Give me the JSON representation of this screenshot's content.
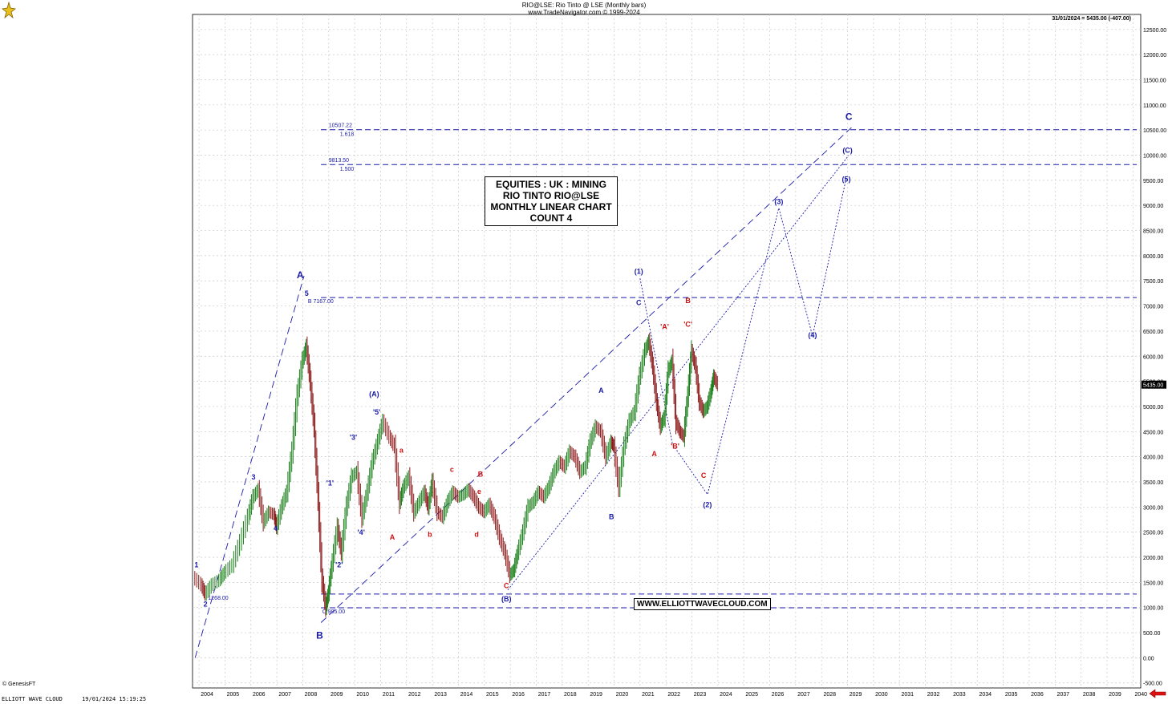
{
  "header": {
    "title": "RIO@LSE:  Rio Tinto @ LSE  (Monthly bars)",
    "subtitle": "www.TradeNavigator.com © 1999-2024",
    "last_info": "31/01/2024 = 5435.00 (-407.00)"
  },
  "title_box": {
    "line1": "EQUITIES : UK : MINING",
    "line2": "RIO TINTO RIO@LSE",
    "line3": "MONTHLY LINEAR CHART",
    "line4": "COUNT 4"
  },
  "website": "WWW.ELLIOTTWAVECLOUD.COM",
  "copyright": "© GenesisFT",
  "footer": {
    "brand": "ELLIOTT WAVE CLOUD",
    "date": "19/01/2024 15:19:25"
  },
  "colors": {
    "price_up": "#1a7f1a",
    "price_down": "#8b1a1a",
    "wave_blue": "#1a1aa8",
    "wave_red": "#cc1111",
    "grid": "#c8c8c8",
    "last_price_bg": "#000000"
  },
  "chart_data": {
    "type": "line",
    "title": "RIO@LSE:  Rio Tinto @ LSE  (Monthly bars)",
    "x_ticks": [
      "2004",
      "2005",
      "2006",
      "2007",
      "2008",
      "2009",
      "2010",
      "2011",
      "2012",
      "2013",
      "2014",
      "2015",
      "2016",
      "2017",
      "2018",
      "2019",
      "2020",
      "2021",
      "2022",
      "2023",
      "2024",
      "2025",
      "2026",
      "2027",
      "2028",
      "2029",
      "2030",
      "2031",
      "2032",
      "2033",
      "2034",
      "2035",
      "2036",
      "2037",
      "2038",
      "2039",
      "2040"
    ],
    "y_ticks": [
      -500,
      0,
      500,
      1000,
      1500,
      2000,
      2500,
      3000,
      3500,
      4000,
      4500,
      5000,
      5500,
      6000,
      6500,
      7000,
      7500,
      8000,
      8500,
      9000,
      9500,
      10000,
      10500,
      11000,
      11500,
      12000,
      12500
    ],
    "y_tick_labels": [
      "-500.00",
      "0.00",
      "500.00",
      "1000.00",
      "1500.00",
      "2000.00",
      "2500.00",
      "3000.00",
      "3500.00",
      "4000.00",
      "4500.00",
      "5000.00",
      "5500.00",
      "6000.00",
      "6500.00",
      "7000.00",
      "7500.00",
      "8000.00",
      "8500.00",
      "9000.00",
      "9500.00",
      "10000.00",
      "10500.00",
      "11000.00",
      "11500.00",
      "12000.00",
      "12500.00"
    ],
    "ylim": [
      -600,
      12800
    ],
    "xlim": [
      2003.75,
      2040.3
    ],
    "grid": true,
    "last_price_label": "5435.00",
    "last_price": 5435,
    "price_series": [
      [
        2003.8,
        1600
      ],
      [
        2004.1,
        1450
      ],
      [
        2004.25,
        1268
      ],
      [
        2004.5,
        1450
      ],
      [
        2004.8,
        1550
      ],
      [
        2005.0,
        1700
      ],
      [
        2005.3,
        1850
      ],
      [
        2005.6,
        2300
      ],
      [
        2005.9,
        2800
      ],
      [
        2006.1,
        3200
      ],
      [
        2006.3,
        3350
      ],
      [
        2006.5,
        2700
      ],
      [
        2006.7,
        2900
      ],
      [
        2006.9,
        2850
      ],
      [
        2007.0,
        2600
      ],
      [
        2007.2,
        3000
      ],
      [
        2007.4,
        3300
      ],
      [
        2007.6,
        4100
      ],
      [
        2007.8,
        5200
      ],
      [
        2008.0,
        5900
      ],
      [
        2008.15,
        6200
      ],
      [
        2008.3,
        5500
      ],
      [
        2008.45,
        4600
      ],
      [
        2008.6,
        3200
      ],
      [
        2008.75,
        1600
      ],
      [
        2008.9,
        995
      ],
      [
        2009.0,
        1300
      ],
      [
        2009.15,
        1900
      ],
      [
        2009.35,
        2600
      ],
      [
        2009.5,
        2100
      ],
      [
        2009.7,
        3000
      ],
      [
        2009.9,
        3600
      ],
      [
        2010.1,
        3700
      ],
      [
        2010.3,
        2800
      ],
      [
        2010.5,
        3300
      ],
      [
        2010.7,
        3900
      ],
      [
        2010.9,
        4300
      ],
      [
        2011.1,
        4700
      ],
      [
        2011.35,
        4400
      ],
      [
        2011.55,
        4200
      ],
      [
        2011.75,
        3100
      ],
      [
        2011.9,
        3400
      ],
      [
        2012.1,
        3600
      ],
      [
        2012.3,
        2900
      ],
      [
        2012.5,
        3100
      ],
      [
        2012.7,
        3300
      ],
      [
        2012.85,
        3000
      ],
      [
        2013.0,
        3500
      ],
      [
        2013.2,
        2900
      ],
      [
        2013.4,
        2800
      ],
      [
        2013.6,
        3100
      ],
      [
        2013.8,
        3300
      ],
      [
        2014.0,
        3200
      ],
      [
        2014.2,
        3250
      ],
      [
        2014.4,
        3350
      ],
      [
        2014.6,
        3200
      ],
      [
        2014.8,
        3000
      ],
      [
        2015.0,
        2900
      ],
      [
        2015.2,
        3050
      ],
      [
        2015.4,
        2800
      ],
      [
        2015.6,
        2400
      ],
      [
        2015.8,
        2100
      ],
      [
        2016.0,
        1650
      ],
      [
        2016.15,
        1750
      ],
      [
        2016.3,
        2100
      ],
      [
        2016.5,
        2500
      ],
      [
        2016.7,
        3000
      ],
      [
        2016.9,
        3100
      ],
      [
        2017.1,
        3300
      ],
      [
        2017.3,
        3200
      ],
      [
        2017.5,
        3400
      ],
      [
        2017.7,
        3700
      ],
      [
        2017.9,
        3900
      ],
      [
        2018.1,
        3800
      ],
      [
        2018.3,
        4100
      ],
      [
        2018.5,
        4000
      ],
      [
        2018.7,
        3700
      ],
      [
        2018.9,
        3800
      ],
      [
        2019.1,
        4300
      ],
      [
        2019.3,
        4600
      ],
      [
        2019.5,
        4500
      ],
      [
        2019.7,
        4000
      ],
      [
        2019.9,
        4300
      ],
      [
        2020.0,
        4200
      ],
      [
        2020.2,
        3400
      ],
      [
        2020.4,
        4200
      ],
      [
        2020.6,
        4700
      ],
      [
        2020.8,
        4900
      ],
      [
        2021.0,
        5600
      ],
      [
        2021.2,
        6100
      ],
      [
        2021.35,
        6300
      ],
      [
        2021.5,
        5800
      ],
      [
        2021.65,
        5100
      ],
      [
        2021.8,
        4600
      ],
      [
        2021.95,
        4800
      ],
      [
        2022.1,
        5700
      ],
      [
        2022.25,
        5900
      ],
      [
        2022.4,
        4700
      ],
      [
        2022.55,
        4500
      ],
      [
        2022.7,
        4400
      ],
      [
        2022.85,
        5200
      ],
      [
        2023.0,
        6100
      ],
      [
        2023.15,
        5800
      ],
      [
        2023.3,
        5100
      ],
      [
        2023.45,
        4900
      ],
      [
        2023.6,
        5000
      ],
      [
        2023.75,
        5300
      ],
      [
        2023.85,
        5600
      ],
      [
        2024.0,
        5435
      ]
    ],
    "horizontal_levels": [
      {
        "value": 10507.22,
        "label": "10507.22",
        "ratio": "1.618"
      },
      {
        "value": 9813.5,
        "label": "9813.50",
        "ratio": "1.500"
      },
      {
        "value": 7167,
        "label": "B 7167.00"
      },
      {
        "value": 1268,
        "label": "1268.00"
      },
      {
        "value": 995,
        "label": "C 995.00"
      }
    ],
    "projection_path": [
      [
        2021.0,
        7550
      ],
      [
        2022.25,
        4250
      ],
      [
        2023.6,
        3250
      ],
      [
        2026.35,
        8950
      ],
      [
        2027.65,
        6400
      ],
      [
        2028.95,
        9550
      ]
    ],
    "wave_labels_blue": [
      {
        "text": "A",
        "x": 2007.9,
        "y": 7550,
        "big": true
      },
      {
        "text": "B",
        "x": 2008.65,
        "y": 380,
        "big": true
      },
      {
        "text": "C",
        "x": 2029.05,
        "y": 10700,
        "big": true
      },
      {
        "text": "1",
        "x": 2003.9,
        "y": 1800
      },
      {
        "text": "2",
        "x": 2004.25,
        "y": 1020
      },
      {
        "text": "3",
        "x": 2006.1,
        "y": 3550
      },
      {
        "text": "4",
        "x": 2006.95,
        "y": 2530
      },
      {
        "text": "5",
        "x": 2008.15,
        "y": 7200
      },
      {
        "text": "(A)",
        "x": 2010.75,
        "y": 5200
      },
      {
        "text": "(B)",
        "x": 2015.85,
        "y": 1120
      },
      {
        "text": "(C)",
        "x": 2029.0,
        "y": 10050
      },
      {
        "text": "'1'",
        "x": 2009.05,
        "y": 3430
      },
      {
        "text": "'2'",
        "x": 2009.4,
        "y": 1800
      },
      {
        "text": "'3'",
        "x": 2009.95,
        "y": 4340
      },
      {
        "text": "'4'",
        "x": 2010.25,
        "y": 2450
      },
      {
        "text": "'5'",
        "x": 2010.85,
        "y": 4840
      },
      {
        "text": "A",
        "x": 2019.5,
        "y": 5270
      },
      {
        "text": "B",
        "x": 2019.9,
        "y": 2760
      },
      {
        "text": "C",
        "x": 2020.95,
        "y": 7020
      },
      {
        "text": "(1)",
        "x": 2020.95,
        "y": 7640
      },
      {
        "text": "(2)",
        "x": 2023.6,
        "y": 3000
      },
      {
        "text": "(3)",
        "x": 2026.35,
        "y": 9030
      },
      {
        "text": "(4)",
        "x": 2027.65,
        "y": 6370
      },
      {
        "text": "(5)",
        "x": 2028.95,
        "y": 9470
      }
    ],
    "wave_labels_red": [
      {
        "text": "A",
        "x": 2011.45,
        "y": 2350
      },
      {
        "text": "a",
        "x": 2011.8,
        "y": 4080
      },
      {
        "text": "b",
        "x": 2012.9,
        "y": 2410
      },
      {
        "text": "c",
        "x": 2013.75,
        "y": 3700
      },
      {
        "text": "d",
        "x": 2014.7,
        "y": 2410
      },
      {
        "text": "e",
        "x": 2014.8,
        "y": 3260
      },
      {
        "text": "B",
        "x": 2014.85,
        "y": 3600
      },
      {
        "text": "C",
        "x": 2015.85,
        "y": 1390
      },
      {
        "text": "A",
        "x": 2021.55,
        "y": 4010
      },
      {
        "text": "'A'",
        "x": 2021.95,
        "y": 6540
      },
      {
        "text": "'B'",
        "x": 2022.35,
        "y": 4160
      },
      {
        "text": "B",
        "x": 2022.85,
        "y": 7060
      },
      {
        "text": "'C'",
        "x": 2022.85,
        "y": 6590
      },
      {
        "text": "C",
        "x": 2023.45,
        "y": 3580
      }
    ],
    "trend_lines": [
      {
        "from": [
          2003.85,
          0
        ],
        "to": [
          2008.05,
          7600
        ],
        "style": "dash"
      },
      {
        "from": [
          2008.7,
          700
        ],
        "to": [
          2029.15,
          10550
        ],
        "style": "dash"
      },
      {
        "from": [
          2015.9,
          1350
        ],
        "to": [
          2029.05,
          10000
        ],
        "style": "dot"
      }
    ]
  }
}
